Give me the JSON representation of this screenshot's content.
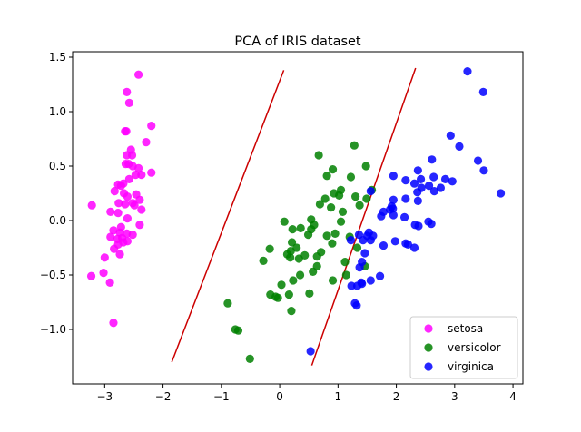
{
  "chart_data": {
    "type": "scatter",
    "title": "PCA of IRIS dataset",
    "xlabel": "",
    "ylabel": "",
    "xlim": [
      -3.55,
      4.17
    ],
    "ylim": [
      -1.5,
      1.55
    ],
    "xticks": [
      -3,
      -2,
      -1,
      0,
      1,
      2,
      3,
      4
    ],
    "yticks": [
      -1.0,
      -0.5,
      0.0,
      0.5,
      1.0,
      1.5
    ],
    "xtick_labels": [
      "−3",
      "−2",
      "−1",
      "0",
      "1",
      "2",
      "3",
      "4"
    ],
    "ytick_labels": [
      "−1.0",
      "−0.5",
      "0.0",
      "0.5",
      "1.0",
      "1.5"
    ],
    "grid": false,
    "legend_position": "lower-right",
    "series": [
      {
        "name": "setosa",
        "color": "#ff00ff",
        "points": [
          [
            -2.42,
            1.34
          ],
          [
            -2.62,
            1.18
          ],
          [
            -2.58,
            1.08
          ],
          [
            -2.2,
            0.87
          ],
          [
            -2.65,
            0.82
          ],
          [
            -2.63,
            0.82
          ],
          [
            -2.29,
            0.72
          ],
          [
            -2.55,
            0.65
          ],
          [
            -2.62,
            0.6
          ],
          [
            -2.53,
            0.6
          ],
          [
            -2.59,
            0.52
          ],
          [
            -2.64,
            0.52
          ],
          [
            -2.52,
            0.5
          ],
          [
            -2.42,
            0.48
          ],
          [
            -2.2,
            0.44
          ],
          [
            -2.37,
            0.42
          ],
          [
            -2.47,
            0.42
          ],
          [
            -2.58,
            0.38
          ],
          [
            -2.68,
            0.34
          ],
          [
            -2.77,
            0.33
          ],
          [
            -2.72,
            0.32
          ],
          [
            -2.83,
            0.27
          ],
          [
            -2.67,
            0.25
          ],
          [
            -2.46,
            0.24
          ],
          [
            -2.61,
            0.22
          ],
          [
            -2.4,
            0.19
          ],
          [
            -2.76,
            0.16
          ],
          [
            -2.52,
            0.16
          ],
          [
            -2.65,
            0.15
          ],
          [
            -3.22,
            0.14
          ],
          [
            -2.49,
            0.14
          ],
          [
            -2.37,
            0.1
          ],
          [
            -2.9,
            0.08
          ],
          [
            -2.77,
            0.07
          ],
          [
            -2.61,
            0.02
          ],
          [
            -2.4,
            -0.04
          ],
          [
            -2.72,
            -0.06
          ],
          [
            -2.85,
            -0.09
          ],
          [
            -2.74,
            -0.11
          ],
          [
            -2.62,
            -0.12
          ],
          [
            -2.52,
            -0.13
          ],
          [
            -2.9,
            -0.15
          ],
          [
            -2.7,
            -0.16
          ],
          [
            -2.78,
            -0.17
          ],
          [
            -2.61,
            -0.19
          ],
          [
            -2.68,
            -0.2
          ],
          [
            -2.77,
            -0.22
          ],
          [
            -2.84,
            -0.26
          ],
          [
            -2.74,
            -0.31
          ],
          [
            -3.0,
            -0.34
          ],
          [
            -3.02,
            -0.48
          ],
          [
            -3.23,
            -0.51
          ],
          [
            -2.91,
            -0.57
          ],
          [
            -2.85,
            -0.94
          ]
        ]
      },
      {
        "name": "versicolor",
        "color": "#008000",
        "points": [
          [
            1.28,
            0.69
          ],
          [
            0.67,
            0.6
          ],
          [
            1.48,
            0.5
          ],
          [
            0.91,
            0.47
          ],
          [
            0.81,
            0.41
          ],
          [
            1.22,
            0.4
          ],
          [
            1.05,
            0.28
          ],
          [
            1.58,
            0.28
          ],
          [
            0.93,
            0.25
          ],
          [
            1.02,
            0.23
          ],
          [
            1.3,
            0.22
          ],
          [
            0.78,
            0.2
          ],
          [
            1.49,
            0.2
          ],
          [
            0.69,
            0.15
          ],
          [
            1.37,
            0.14
          ],
          [
            0.88,
            0.12
          ],
          [
            1.08,
            0.08
          ],
          [
            0.54,
            0.01
          ],
          [
            0.08,
            -0.01
          ],
          [
            1.05,
            -0.01
          ],
          [
            0.59,
            -0.04
          ],
          [
            0.36,
            -0.07
          ],
          [
            0.22,
            -0.08
          ],
          [
            0.54,
            -0.08
          ],
          [
            0.95,
            -0.12
          ],
          [
            0.81,
            -0.14
          ],
          [
            0.49,
            -0.13
          ],
          [
            1.2,
            -0.15
          ],
          [
            0.21,
            -0.2
          ],
          [
            0.9,
            -0.21
          ],
          [
            1.33,
            -0.25
          ],
          [
            0.29,
            -0.25
          ],
          [
            -0.17,
            -0.26
          ],
          [
            0.19,
            -0.28
          ],
          [
            0.71,
            -0.29
          ],
          [
            0.13,
            -0.31
          ],
          [
            0.43,
            -0.32
          ],
          [
            0.64,
            -0.33
          ],
          [
            0.18,
            -0.34
          ],
          [
            0.33,
            -0.35
          ],
          [
            -0.28,
            -0.37
          ],
          [
            1.12,
            -0.38
          ],
          [
            0.64,
            -0.42
          ],
          [
            1.46,
            -0.42
          ],
          [
            0.57,
            -0.47
          ],
          [
            0.35,
            -0.5
          ],
          [
            1.14,
            -0.5
          ],
          [
            0.23,
            -0.55
          ],
          [
            0.91,
            -0.55
          ],
          [
            0.03,
            -0.59
          ],
          [
            -0.16,
            -0.68
          ],
          [
            0.16,
            -0.68
          ],
          [
            0.51,
            -0.67
          ],
          [
            -0.07,
            -0.7
          ],
          [
            -0.03,
            -0.71
          ],
          [
            0.2,
            -0.83
          ],
          [
            -0.89,
            -0.76
          ],
          [
            -0.76,
            -1.0
          ],
          [
            -0.71,
            -1.01
          ],
          [
            -0.51,
            -1.27
          ]
        ]
      },
      {
        "name": "virginica",
        "color": "#0000ff",
        "points": [
          [
            3.22,
            1.37
          ],
          [
            3.49,
            1.18
          ],
          [
            2.93,
            0.78
          ],
          [
            3.08,
            0.68
          ],
          [
            2.61,
            0.56
          ],
          [
            3.4,
            0.55
          ],
          [
            3.5,
            0.46
          ],
          [
            2.37,
            0.46
          ],
          [
            2.64,
            0.4
          ],
          [
            2.96,
            0.36
          ],
          [
            1.95,
            0.41
          ],
          [
            2.84,
            0.38
          ],
          [
            2.16,
            0.37
          ],
          [
            2.42,
            0.38
          ],
          [
            2.31,
            0.34
          ],
          [
            2.56,
            0.32
          ],
          [
            2.43,
            0.3
          ],
          [
            2.76,
            0.3
          ],
          [
            2.65,
            0.27
          ],
          [
            3.79,
            0.25
          ],
          [
            2.36,
            0.26
          ],
          [
            1.56,
            0.27
          ],
          [
            2.16,
            0.2
          ],
          [
            1.95,
            0.19
          ],
          [
            2.37,
            0.18
          ],
          [
            1.92,
            0.13
          ],
          [
            1.94,
            0.11
          ],
          [
            1.89,
            0.1
          ],
          [
            1.78,
            0.08
          ],
          [
            1.95,
            0.05
          ],
          [
            2.14,
            0.03
          ],
          [
            1.74,
            0.04
          ],
          [
            2.55,
            -0.01
          ],
          [
            2.6,
            -0.03
          ],
          [
            2.32,
            -0.04
          ],
          [
            2.38,
            -0.05
          ],
          [
            1.53,
            -0.11
          ],
          [
            1.36,
            -0.13
          ],
          [
            1.5,
            -0.14
          ],
          [
            1.6,
            -0.14
          ],
          [
            1.43,
            -0.18
          ],
          [
            1.22,
            -0.18
          ],
          [
            1.56,
            -0.18
          ],
          [
            1.98,
            -0.19
          ],
          [
            2.16,
            -0.21
          ],
          [
            2.2,
            -0.22
          ],
          [
            1.78,
            -0.23
          ],
          [
            2.31,
            -0.25
          ],
          [
            1.46,
            -0.3
          ],
          [
            1.41,
            -0.38
          ],
          [
            1.37,
            -0.43
          ],
          [
            1.72,
            -0.51
          ],
          [
            1.56,
            -0.55
          ],
          [
            1.41,
            -0.58
          ],
          [
            1.4,
            -0.57
          ],
          [
            1.23,
            -0.6
          ],
          [
            1.33,
            -0.6
          ],
          [
            1.29,
            -0.76
          ],
          [
            1.32,
            -0.78
          ],
          [
            0.53,
            -1.2
          ]
        ]
      }
    ],
    "annotations": [
      {
        "type": "line",
        "color": "#cc0000",
        "from": [
          -1.85,
          -1.3
        ],
        "to": [
          0.07,
          1.38
        ]
      },
      {
        "type": "line",
        "color": "#cc0000",
        "from": [
          0.55,
          -1.33
        ],
        "to": [
          2.33,
          1.4
        ]
      }
    ]
  }
}
